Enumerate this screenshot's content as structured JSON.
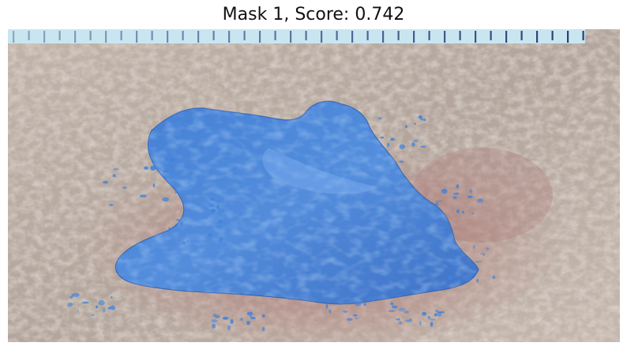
{
  "figure": {
    "title": "Mask 1, Score: 0.742"
  },
  "photo": {
    "subject": "skin wound with segmentation mask overlay",
    "colors": {
      "skin_base": "#bdb0a6",
      "skin_light": "#d8cdc4",
      "skin_shadow": "#8f7f76",
      "wound_red": "#b0706e",
      "mask_blue": "#3f82dd",
      "mask_edge": "#2f63b5",
      "ruler_bg": "#c7e4ee",
      "ruler_tick": "#1f2f6a"
    }
  }
}
